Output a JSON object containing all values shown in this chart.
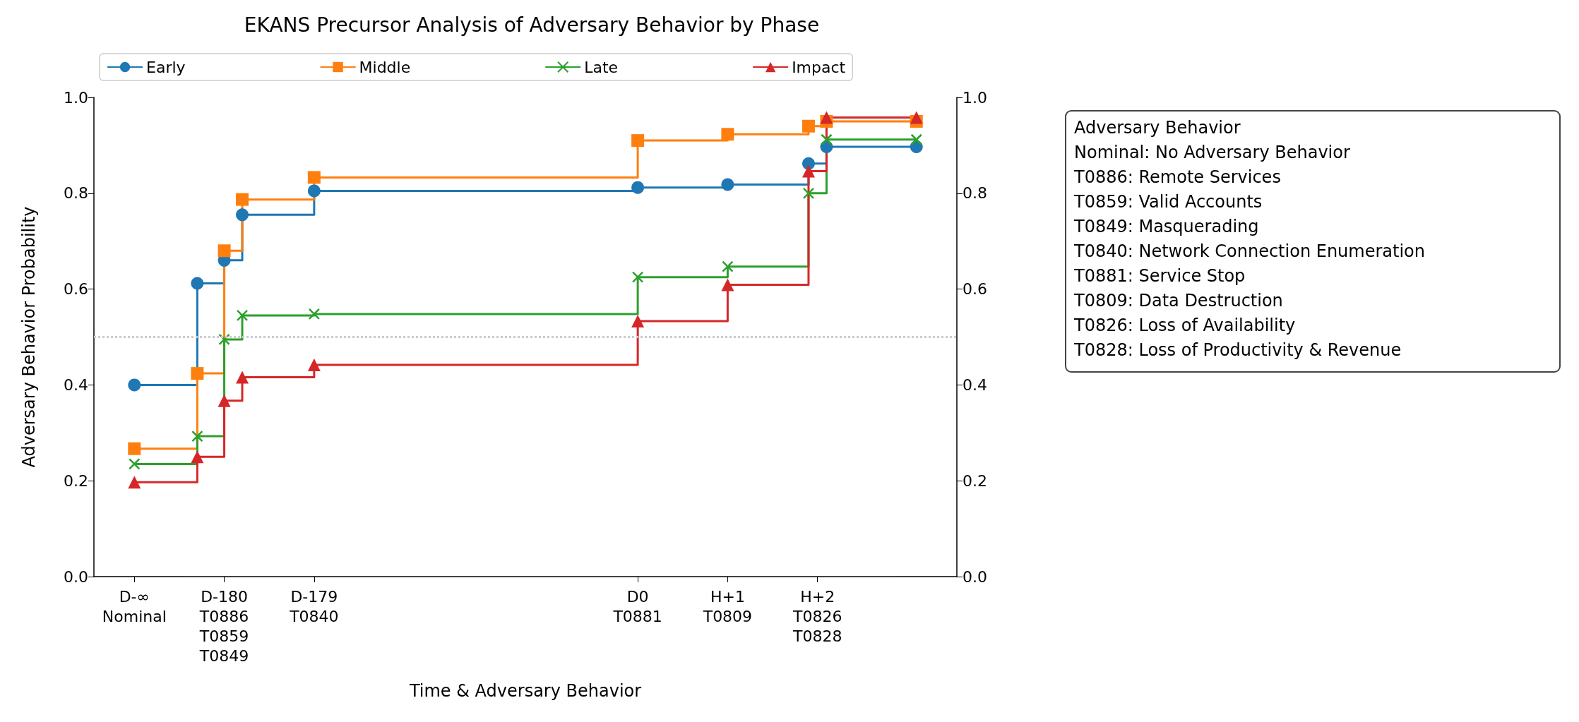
{
  "chart_data": {
    "type": "step",
    "title": "EKANS Precursor Analysis of Adversary Behavior by Phase",
    "xlabel": "Time & Adversary Behavior",
    "ylabel": "Adversary Behavior Probability",
    "categories": [
      null,
      null,
      null,
      null,
      "D-∞\nNominal",
      null,
      null,
      null,
      null,
      null,
      null,
      null,
      null,
      null,
      "D-180\nT0886\nT0859\nT0849",
      null,
      null,
      null,
      null,
      null,
      null,
      null,
      null,
      null,
      "D-179\nT0840",
      null,
      null,
      null,
      null,
      null,
      null,
      null,
      null,
      null,
      null,
      null,
      null,
      null,
      null,
      null,
      null,
      null,
      null,
      null,
      null,
      null,
      null,
      null,
      null,
      null,
      null,
      null,
      null,
      null,
      null,
      null,
      null,
      null,
      null,
      null,
      "D0\nT0881",
      null,
      null,
      null,
      null,
      null,
      null,
      null,
      null,
      null,
      "H+1\nT0809",
      null,
      null,
      null,
      null,
      null,
      null,
      null,
      null,
      null,
      "H+2\nT0826\nT0828",
      null,
      null,
      null,
      null,
      null,
      null,
      null,
      null,
      null,
      null,
      null,
      null,
      null,
      null,
      null
    ],
    "ylim": [
      0,
      1
    ],
    "yticks": [
      {
        "value": 0,
        "label": "0.0"
      },
      0.2,
      0.4,
      0.6,
      0.8,
      {
        "value": 1,
        "label": "1.0"
      }
    ],
    "y2lim": [
      0,
      1
    ],
    "y2ticks": [
      {
        "value": 0,
        "label": "0.0"
      },
      0.2,
      0.4,
      0.6,
      0.8,
      {
        "value": 1,
        "label": "1.0"
      }
    ],
    "series": [
      {
        "name": "Early",
        "color": "#1f77b4",
        "marker": "circle",
        "values": [
          null,
          null,
          null,
          null,
          0.4,
          null,
          null,
          null,
          null,
          null,
          null,
          0.612,
          null,
          null,
          0.66,
          null,
          0.755,
          null,
          null,
          null,
          null,
          null,
          null,
          null,
          0.805,
          null,
          null,
          null,
          null,
          null,
          null,
          null,
          null,
          null,
          null,
          null,
          null,
          null,
          null,
          null,
          null,
          null,
          null,
          null,
          null,
          null,
          null,
          null,
          null,
          null,
          null,
          null,
          null,
          null,
          null,
          null,
          null,
          null,
          null,
          null,
          0.812,
          null,
          null,
          null,
          null,
          null,
          null,
          null,
          null,
          null,
          0.818,
          null,
          null,
          null,
          null,
          null,
          null,
          null,
          null,
          0.862,
          null,
          0.897,
          null,
          null,
          null,
          null,
          null,
          null,
          null,
          null,
          null,
          0.897,
          null,
          null,
          null,
          null
        ]
      },
      {
        "name": "Middle",
        "color": "#ff7f0e",
        "marker": "square",
        "values": [
          null,
          null,
          null,
          null,
          0.267,
          null,
          null,
          null,
          null,
          null,
          null,
          0.424,
          null,
          null,
          0.68,
          null,
          0.787,
          null,
          null,
          null,
          null,
          null,
          null,
          null,
          0.833,
          null,
          null,
          null,
          null,
          null,
          null,
          null,
          null,
          null,
          null,
          null,
          null,
          null,
          null,
          null,
          null,
          null,
          null,
          null,
          null,
          null,
          null,
          null,
          null,
          null,
          null,
          null,
          null,
          null,
          null,
          null,
          null,
          null,
          null,
          null,
          0.91,
          null,
          null,
          null,
          null,
          null,
          null,
          null,
          null,
          null,
          0.923,
          null,
          null,
          null,
          null,
          null,
          null,
          null,
          null,
          0.94,
          null,
          0.95,
          null,
          null,
          null,
          null,
          null,
          null,
          null,
          null,
          null,
          0.95,
          null,
          null,
          null,
          null
        ]
      },
      {
        "name": "Late",
        "color": "#2ca02c",
        "marker": "cross",
        "values": [
          null,
          null,
          null,
          null,
          0.235,
          null,
          null,
          null,
          null,
          null,
          null,
          0.293,
          null,
          null,
          0.495,
          null,
          0.545,
          null,
          null,
          null,
          null,
          null,
          null,
          null,
          0.548,
          null,
          null,
          null,
          null,
          null,
          null,
          null,
          null,
          null,
          null,
          null,
          null,
          null,
          null,
          null,
          null,
          null,
          null,
          null,
          null,
          null,
          null,
          null,
          null,
          null,
          null,
          null,
          null,
          null,
          null,
          null,
          null,
          null,
          null,
          null,
          0.625,
          null,
          null,
          null,
          null,
          null,
          null,
          null,
          null,
          null,
          0.647,
          null,
          null,
          null,
          null,
          null,
          null,
          null,
          null,
          0.8,
          null,
          0.912,
          null,
          null,
          null,
          null,
          null,
          null,
          null,
          null,
          null,
          0.912,
          null,
          null,
          null,
          null
        ]
      },
      {
        "name": "Impact",
        "color": "#d62728",
        "marker": "triangle",
        "values": [
          null,
          null,
          null,
          null,
          0.197,
          null,
          null,
          null,
          null,
          null,
          null,
          0.25,
          null,
          null,
          0.367,
          null,
          0.416,
          null,
          null,
          null,
          null,
          null,
          null,
          null,
          0.442,
          null,
          null,
          null,
          null,
          null,
          null,
          null,
          null,
          null,
          null,
          null,
          null,
          null,
          null,
          null,
          null,
          null,
          null,
          null,
          null,
          null,
          null,
          null,
          null,
          null,
          null,
          null,
          null,
          null,
          null,
          null,
          null,
          null,
          null,
          null,
          0.533,
          null,
          null,
          null,
          null,
          null,
          null,
          null,
          null,
          null,
          0.609,
          null,
          null,
          null,
          null,
          null,
          null,
          null,
          null,
          0.846,
          null,
          0.958,
          null,
          null,
          null,
          null,
          null,
          null,
          null,
          null,
          null,
          0.958,
          null,
          null,
          null,
          null
        ]
      }
    ],
    "ref_lines": [
      {
        "axis": "y",
        "value": 0.5,
        "color": "#cccccc",
        "line_style": "dotted"
      }
    ],
    "annotations": [
      "Adversary Behavior",
      "Nominal: No Adversary Behavior",
      "T0886: Remote Services",
      "T0859: Valid Accounts",
      "T0849: Masquerading",
      "T0840: Network Connection Enumeration",
      "T0881: Service Stop",
      "T0809: Data Destruction",
      "T0826: Loss of Availability",
      "T0828: Loss of Productivity & Revenue"
    ],
    "legend": "top",
    "line_style": "solid"
  }
}
